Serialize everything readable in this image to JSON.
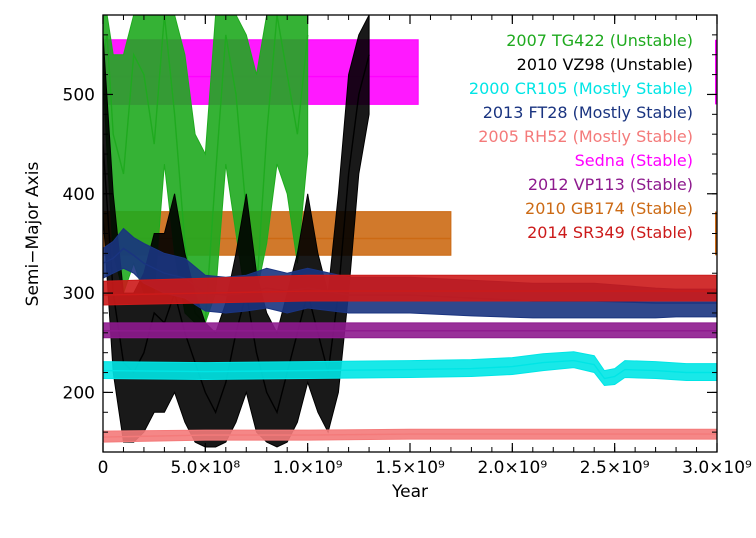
{
  "chart_data": {
    "type": "line",
    "title": "",
    "xlabel": "Year",
    "ylabel": "Semi−Major Axis",
    "xlim": [
      0,
      3000000000
    ],
    "ylim": [
      140,
      580
    ],
    "x_ticks": [
      {
        "value": 0,
        "label": "0"
      },
      {
        "value": 500000000,
        "label": "5.0×10⁸"
      },
      {
        "value": 1000000000,
        "label": "1.0×10⁹"
      },
      {
        "value": 1500000000,
        "label": "1.5×10⁹"
      },
      {
        "value": 2000000000,
        "label": "2.0×10⁹"
      },
      {
        "value": 2500000000,
        "label": "2.5×10⁹"
      },
      {
        "value": 3000000000,
        "label": "3.0×10⁹"
      }
    ],
    "y_ticks": [
      {
        "value": 200,
        "label": "200"
      },
      {
        "value": 300,
        "label": "300"
      },
      {
        "value": 400,
        "label": "400"
      },
      {
        "value": 500,
        "label": "500"
      }
    ],
    "grid": false,
    "legend_position": "top-right",
    "series": [
      {
        "name": "2007 TG422 (Unstable)",
        "color": "#1faa1f",
        "x": [
          0,
          20000000,
          50000000,
          100000000,
          150000000,
          200000000,
          250000000,
          300000000,
          350000000,
          400000000,
          450000000,
          500000000,
          550000000,
          600000000,
          650000000,
          700000000,
          750000000,
          800000000,
          850000000,
          900000000,
          950000000,
          1000000000
        ],
        "y": [
          540,
          560,
          460,
          420,
          540,
          520,
          450,
          580,
          480,
          350,
          280,
          270,
          420,
          560,
          500,
          380,
          300,
          460,
          580,
          520,
          460,
          560
        ],
        "min": [
          520,
          440,
          340,
          300,
          330,
          300,
          300,
          430,
          340,
          280,
          270,
          270,
          300,
          430,
          360,
          290,
          300,
          350,
          430,
          400,
          330,
          440
        ],
        "max": [
          580,
          580,
          540,
          540,
          580,
          580,
          580,
          580,
          580,
          540,
          460,
          440,
          580,
          580,
          580,
          560,
          520,
          580,
          580,
          580,
          580,
          580
        ]
      },
      {
        "name": "2010 VZ98 (Unstable)",
        "color": "#000000",
        "x": [
          0,
          50000000,
          100000000,
          150000000,
          200000000,
          250000000,
          300000000,
          350000000,
          400000000,
          450000000,
          500000000,
          550000000,
          600000000,
          650000000,
          700000000,
          750000000,
          800000000,
          850000000,
          900000000,
          950000000,
          1000000000,
          1050000000,
          1100000000,
          1150000000,
          1200000000,
          1250000000,
          1300000000
        ],
        "y": [
          450,
          300,
          230,
          220,
          240,
          280,
          270,
          300,
          260,
          230,
          200,
          180,
          210,
          260,
          300,
          240,
          200,
          180,
          220,
          260,
          300,
          260,
          220,
          300,
          420,
          500,
          540
        ],
        "min": [
          380,
          220,
          150,
          150,
          160,
          180,
          180,
          200,
          170,
          150,
          145,
          145,
          150,
          170,
          200,
          160,
          150,
          145,
          150,
          170,
          210,
          180,
          160,
          200,
          300,
          420,
          480
        ],
        "max": [
          560,
          400,
          300,
          300,
          320,
          360,
          360,
          400,
          340,
          300,
          270,
          260,
          290,
          340,
          400,
          320,
          280,
          260,
          300,
          340,
          400,
          340,
          300,
          400,
          520,
          560,
          580
        ]
      },
      {
        "name": "2000 CR105 (Mostly Stable)",
        "color": "#00e5e5",
        "x": [
          0,
          500000000,
          1000000000,
          1500000000,
          1800000000,
          2000000000,
          2150000000,
          2300000000,
          2400000000,
          2450000000,
          2500000000,
          2550000000,
          2700000000,
          2850000000,
          3000000000
        ],
        "y": [
          222,
          221,
          222,
          223,
          224,
          226,
          230,
          232,
          228,
          214,
          216,
          223,
          222,
          220,
          220
        ],
        "min": [
          214,
          213,
          214,
          215,
          216,
          218,
          222,
          225,
          220,
          207,
          208,
          215,
          214,
          212,
          212
        ],
        "max": [
          231,
          230,
          231,
          232,
          233,
          235,
          239,
          241,
          237,
          222,
          224,
          232,
          231,
          229,
          229
        ]
      },
      {
        "name": "2013 FT28 (Mostly Stable)",
        "color": "#1a3480",
        "x": [
          0,
          50000000,
          100000000,
          150000000,
          200000000,
          300000000,
          400000000,
          500000000,
          600000000,
          700000000,
          800000000,
          900000000,
          1000000000,
          1200000000,
          1500000000,
          1800000000,
          2100000000,
          2400000000,
          2700000000,
          2800000000,
          3000000000
        ],
        "y": [
          330,
          335,
          345,
          338,
          330,
          320,
          315,
          300,
          298,
          300,
          305,
          302,
          305,
          298,
          298,
          295,
          292,
          292,
          290,
          290,
          290
        ],
        "min": [
          315,
          320,
          325,
          320,
          310,
          300,
          295,
          282,
          280,
          282,
          285,
          280,
          285,
          280,
          280,
          277,
          275,
          275,
          275,
          276,
          276
        ],
        "max": [
          345,
          352,
          365,
          356,
          350,
          340,
          335,
          318,
          316,
          318,
          325,
          320,
          325,
          316,
          316,
          313,
          310,
          310,
          305,
          304,
          304
        ]
      },
      {
        "name": "2005 RH52 (Mostly Stable)",
        "color": "#f47a7a",
        "x": [
          0,
          500000000,
          1000000000,
          1500000000,
          2000000000,
          2500000000,
          3000000000
        ],
        "y": [
          155,
          157,
          157,
          158,
          158,
          158,
          158
        ],
        "min": [
          150,
          152,
          152,
          153,
          153,
          153,
          153
        ],
        "max": [
          161,
          162,
          162,
          163,
          163,
          163,
          163
        ]
      },
      {
        "name": "Sedna (Stable)",
        "color": "#ff00ff",
        "x": [
          0,
          500000000,
          1000000000,
          1540000000
        ],
        "y": [
          518,
          518,
          518,
          518
        ],
        "min": [
          490,
          490,
          490,
          490
        ],
        "max": [
          555,
          555,
          555,
          555
        ]
      },
      {
        "name": "2012 VP113 (Stable)",
        "color": "#8e1a8e",
        "x": [
          0,
          500000000,
          1000000000,
          1500000000,
          2000000000,
          2500000000,
          3000000000
        ],
        "y": [
          262,
          262,
          262,
          262,
          262,
          262,
          262
        ],
        "min": [
          255,
          255,
          255,
          255,
          255,
          255,
          255
        ],
        "max": [
          270,
          270,
          270,
          270,
          270,
          270,
          270
        ]
      },
      {
        "name": "2010 GB174 (Stable)",
        "color": "#cc6a14",
        "x": [
          0,
          500000000,
          1000000000,
          1700000000
        ],
        "y": [
          355,
          355,
          355,
          355
        ],
        "min": [
          338,
          338,
          338,
          338
        ],
        "max": [
          382,
          382,
          382,
          382
        ]
      },
      {
        "name": "2014 SR349 (Stable)",
        "color": "#cc1a1a",
        "x": [
          0,
          500000000,
          1000000000,
          1500000000,
          2000000000,
          2500000000,
          3000000000
        ],
        "y": [
          298,
          300,
          302,
          302,
          302,
          302,
          302
        ],
        "min": [
          288,
          290,
          292,
          292,
          292,
          292,
          292
        ],
        "max": [
          312,
          315,
          318,
          318,
          318,
          318,
          318
        ]
      }
    ],
    "draw_order": [
      5,
      7,
      0,
      1,
      3,
      6,
      2,
      4,
      8
    ],
    "tail_segments": [
      {
        "series": 5,
        "x": [
          2990000000,
          3000000000
        ],
        "min": 490,
        "max": 555
      },
      {
        "series": 7,
        "x": [
          2990000000,
          3000000000
        ],
        "min": 338,
        "max": 382
      }
    ]
  }
}
